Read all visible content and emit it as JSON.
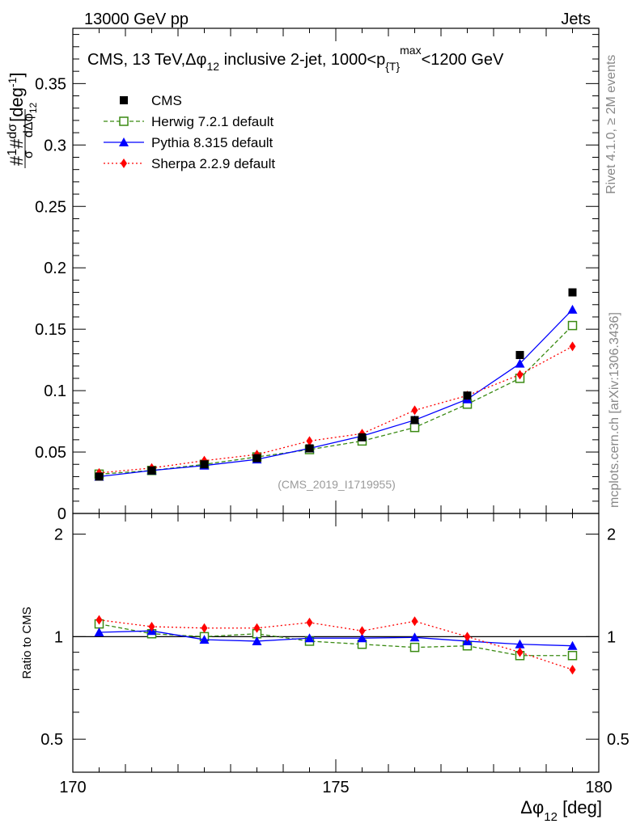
{
  "header": {
    "left": "13000 GeV pp",
    "right": "Jets"
  },
  "side_labels": {
    "rivet": "Rivet 4.1.0, ≥ 2M events",
    "mcplots": "mcplots.cern.ch [arXiv:1306.3436]"
  },
  "chart_data": {
    "type": "line",
    "title": "CMS, 13 TeV, Δφ₁₂ inclusive 2-jet, 1000<p_{T}^{max}<1200 GeV",
    "title_parts": {
      "prefix": "CMS, 13 TeV,Δφ",
      "sub1": "12",
      "middle": " inclusive 2-jet, 1000<p",
      "sub2": "{T}",
      "sup": "max",
      "suffix": "<1200 GeV"
    },
    "watermark": "(CMS_2019_I1719955)",
    "xlabel": "Δφ",
    "xlabel_sub": "12",
    "xlabel_unit": " [deg]",
    "ylabel": "#1/σ # dσ/dΔφ₁₂ [deg⁻¹]",
    "ylabel_parts": {
      "a": "#",
      "one": "1",
      "sigma": "σ",
      "b": "#",
      "dsigma": "dσ",
      "ddphi": "dΔφ",
      "sub": "12",
      "unit": "[deg",
      "unit_sup": "-1",
      "unit_close": "]"
    },
    "ratio_ylabel": "Ratio to CMS",
    "xlim": [
      170,
      180
    ],
    "ylim": [
      0,
      0.395
    ],
    "ratio_ylim": [
      0.4,
      2.3
    ],
    "x_ticks": [
      "170",
      "175",
      "180"
    ],
    "y_ticks": [
      "0",
      "0.05",
      "0.1",
      "0.15",
      "0.2",
      "0.25",
      "0.3",
      "0.35"
    ],
    "ratio_ticks": [
      "0.5",
      "1",
      "2"
    ],
    "x": [
      170.5,
      171.5,
      172.5,
      173.5,
      174.5,
      175.5,
      176.5,
      177.5,
      178.5,
      179.5
    ],
    "series": [
      {
        "name": "CMS",
        "color": "#000000",
        "marker": "square",
        "values": [
          0.03,
          0.035,
          0.04,
          0.045,
          0.053,
          0.062,
          0.076,
          0.096,
          0.129,
          0.18
        ],
        "ratio": [
          1.0,
          1.0,
          1.0,
          1.0,
          1.0,
          1.0,
          1.0,
          1.0,
          1.0,
          1.0
        ]
      },
      {
        "name": "Herwig 7.2.1 default",
        "color": "#3a8a12",
        "marker": "open-square",
        "values": [
          0.032,
          0.035,
          0.04,
          0.046,
          0.052,
          0.059,
          0.07,
          0.089,
          0.11,
          0.153
        ],
        "ratio": [
          1.09,
          1.02,
          1.0,
          1.02,
          0.97,
          0.95,
          0.93,
          0.94,
          0.88,
          0.88
        ]
      },
      {
        "name": "Pythia 8.315 default",
        "color": "#0000ff",
        "marker": "triangle",
        "values": [
          0.03,
          0.035,
          0.039,
          0.044,
          0.053,
          0.063,
          0.076,
          0.093,
          0.122,
          0.166
        ],
        "ratio": [
          1.03,
          1.04,
          0.98,
          0.97,
          0.99,
          0.99,
          0.995,
          0.97,
          0.95,
          0.94
        ]
      },
      {
        "name": "Sherpa 2.2.9 default",
        "color": "#ff0000",
        "marker": "diamond",
        "values": [
          0.033,
          0.037,
          0.043,
          0.048,
          0.059,
          0.065,
          0.084,
          0.096,
          0.113,
          0.136
        ],
        "ratio": [
          1.12,
          1.07,
          1.06,
          1.06,
          1.1,
          1.04,
          1.11,
          1.0,
          0.9,
          0.8
        ]
      }
    ]
  }
}
